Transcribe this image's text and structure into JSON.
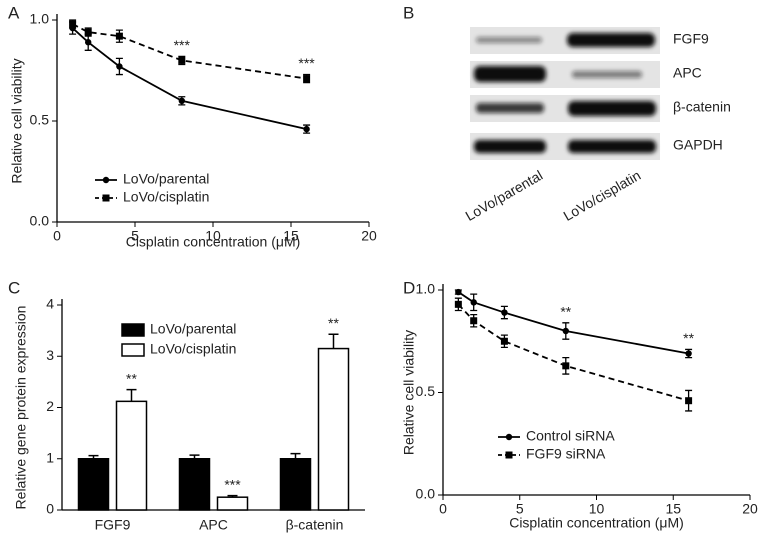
{
  "chart_data": [
    {
      "type": "line",
      "panel": "A",
      "ylabel": "Relative cell viability",
      "xlabel": "Cisplatin concentration (μM)",
      "xlim": [
        0,
        20
      ],
      "xticks": [
        0,
        5,
        10,
        15,
        20
      ],
      "ylim": [
        0,
        1
      ],
      "yticks": [
        {
          "value": 0,
          "label": "0.0"
        },
        {
          "value": 0.5,
          "label": "0.5"
        },
        {
          "value": 1,
          "label": "1.0"
        }
      ],
      "legend": "lower left",
      "x": [
        1,
        2,
        4,
        8,
        16
      ],
      "series": [
        {
          "name": "LoVo/parental",
          "color": "#000000",
          "line_style": "solid",
          "marker": "circle",
          "values": [
            0.96,
            0.89,
            0.77,
            0.6,
            0.46
          ],
          "errors": [
            0.03,
            0.04,
            0.04,
            0.02,
            0.02
          ]
        },
        {
          "name": "LoVo/cisplatin",
          "color": "#000000",
          "line_style": "dashed",
          "marker": "square",
          "values": [
            0.98,
            0.94,
            0.92,
            0.8,
            0.71
          ],
          "errors": [
            0.02,
            0.02,
            0.03,
            0.02,
            0.02
          ]
        }
      ],
      "annotations": [
        {
          "text": "***",
          "x": 8
        },
        {
          "text": "***",
          "x": 16
        }
      ]
    },
    {
      "type": "bar",
      "panel": "C",
      "ylabel": "Relative gene protein expression",
      "ylim": [
        0,
        4
      ],
      "yticks": [
        0,
        1,
        2,
        3,
        4
      ],
      "legend": "upper left",
      "categories": [
        "FGF9",
        "APC",
        "β-catenin"
      ],
      "series": [
        {
          "name": "LoVo/parental",
          "color": "#000000",
          "hollow": false,
          "values": [
            1.0,
            1.0,
            1.0
          ],
          "errors": [
            0.06,
            0.07,
            0.1
          ]
        },
        {
          "name": "LoVo/cisplatin",
          "color": "#000000",
          "hollow": true,
          "values": [
            2.12,
            0.25,
            3.15
          ],
          "errors": [
            0.23,
            0.03,
            0.28
          ]
        }
      ],
      "annotations": [
        {
          "text": "**",
          "x": "FGF9"
        },
        {
          "text": "***",
          "x": "APC"
        },
        {
          "text": "**",
          "x": "β-catenin"
        }
      ]
    },
    {
      "type": "line",
      "panel": "D",
      "ylabel": "Relative cell viability",
      "xlabel": "Cisplatin concentration (μM)",
      "xlim": [
        0,
        20
      ],
      "xticks": [
        0,
        5,
        10,
        15,
        20
      ],
      "ylim": [
        0,
        1
      ],
      "yticks": [
        {
          "value": 0,
          "label": "0.0"
        },
        {
          "value": 0.5,
          "label": "0.5"
        },
        {
          "value": 1,
          "label": "1.0"
        }
      ],
      "legend": "lower left",
      "x": [
        1,
        2,
        4,
        8,
        16
      ],
      "series": [
        {
          "name": "Control siRNA",
          "color": "#000000",
          "line_style": "solid",
          "marker": "circle",
          "values": [
            0.99,
            0.94,
            0.89,
            0.8,
            0.69
          ],
          "errors": [
            0.01,
            0.04,
            0.03,
            0.04,
            0.02
          ]
        },
        {
          "name": "FGF9 siRNA",
          "color": "#000000",
          "line_style": "dashed",
          "marker": "square",
          "values": [
            0.93,
            0.85,
            0.75,
            0.63,
            0.46
          ],
          "errors": [
            0.03,
            0.03,
            0.03,
            0.04,
            0.05
          ]
        }
      ],
      "annotations": [
        {
          "text": "**",
          "x": 8
        },
        {
          "text": "**",
          "x": 16
        }
      ]
    }
  ],
  "blot": {
    "panel": "B",
    "proteins": [
      "FGF9",
      "APC",
      "β-catenin",
      "GAPDH"
    ],
    "lanes": [
      "LoVo/parental",
      "LoVo/cisplatin"
    ]
  }
}
